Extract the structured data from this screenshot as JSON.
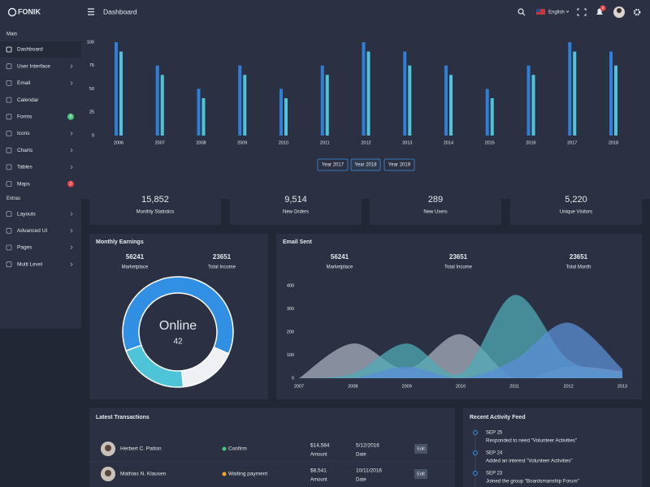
{
  "topbar": {
    "brand": "FONIK",
    "page_title": "Dashboard",
    "language": "English",
    "notification_count": "3"
  },
  "sidebar": {
    "sections": [
      {
        "title": "Main",
        "items": [
          {
            "label": "Dashboard",
            "active": true
          },
          {
            "label": "User Interface",
            "submenu": true
          },
          {
            "label": "Email",
            "submenu": true
          },
          {
            "label": "Calendar"
          },
          {
            "label": "Forms",
            "badge": "8",
            "badge_color": "#4cc37a"
          },
          {
            "label": "Icons",
            "submenu": true
          },
          {
            "label": "Charts",
            "submenu": true
          },
          {
            "label": "Tables",
            "submenu": true
          },
          {
            "label": "Maps",
            "badge": "2",
            "badge_color": "#e8474b"
          }
        ]
      },
      {
        "title": "Extras",
        "items": [
          {
            "label": "Layouts",
            "submenu": true
          },
          {
            "label": "Advanced UI",
            "submenu": true
          },
          {
            "label": "Pages",
            "submenu": true
          },
          {
            "label": "Multi Level",
            "submenu": true
          }
        ]
      }
    ]
  },
  "bar_chart": {
    "type": "bar",
    "categories": [
      "2006",
      "2007",
      "2008",
      "2009",
      "2010",
      "2011",
      "2012",
      "2013",
      "2014",
      "2015",
      "2016",
      "2017",
      "2018"
    ],
    "series": [
      {
        "color": "#2f7fd8",
        "values": [
          100,
          75,
          50,
          75,
          50,
          75,
          100,
          90,
          75,
          50,
          75,
          100,
          90
        ]
      },
      {
        "color": "#4fc3d8",
        "values": [
          90,
          65,
          40,
          65,
          40,
          65,
          90,
          75,
          65,
          40,
          65,
          90,
          75
        ]
      }
    ],
    "ylim": [
      0,
      100
    ],
    "yticks": [
      0,
      25,
      50,
      75,
      100
    ]
  },
  "year_buttons": [
    "Year 2017",
    "Year 2018",
    "Year 2019"
  ],
  "stats": [
    {
      "value": "15,852",
      "label": "Monthly Statistics",
      "color": "#4fc3d8"
    },
    {
      "value": "9,514",
      "label": "New Orders",
      "color": "#8c6fe8"
    },
    {
      "value": "289",
      "label": "New Users",
      "color": "#3d8fe0"
    },
    {
      "value": "5,220",
      "label": "Unique Visitors",
      "color": "#e8474b"
    }
  ],
  "monthly_earnings": {
    "title": "Monthly Earnings",
    "metrics": [
      {
        "value": "56241",
        "label": "Marketplace"
      },
      {
        "value": "23651",
        "label": "Total Income"
      }
    ],
    "donut": {
      "center_label": "Online",
      "center_value": "42",
      "values": [
        62,
        17,
        21
      ],
      "colors": [
        "#3190e3",
        "#eef0f3",
        "#4fc3d8"
      ]
    }
  },
  "email_sent": {
    "title": "Email Sent",
    "metrics": [
      {
        "value": "56241",
        "label": "Marketplace"
      },
      {
        "value": "23651",
        "label": "Total Income"
      },
      {
        "value": "23651",
        "label": "Total Month"
      }
    ],
    "chart": {
      "type": "area",
      "x": [
        2007,
        2008,
        2009,
        2010,
        2011,
        2012,
        2013
      ],
      "xlim": [
        2007,
        2013
      ],
      "xticks": [
        2007,
        2008,
        2009,
        2010,
        2011,
        2012,
        2013
      ],
      "ylim": [
        0,
        400
      ],
      "yticks": [
        0,
        100,
        200,
        300,
        400
      ],
      "series": [
        {
          "color": "#a7aebd",
          "values": [
            0,
            150,
            40,
            190,
            0,
            50,
            30
          ]
        },
        {
          "color": "#4fa9b5",
          "values": [
            0,
            20,
            150,
            20,
            360,
            80,
            20
          ]
        },
        {
          "color": "#5b8fd6",
          "values": [
            0,
            0,
            50,
            0,
            80,
            240,
            40
          ]
        }
      ]
    }
  },
  "transactions": {
    "title": "Latest Transactions",
    "rows": [
      {
        "name": "Herbert C. Patton",
        "status": "Confirm",
        "status_color": "#4cc37a",
        "amount": "$14,584",
        "amount_label": "Amount",
        "date": "5/12/2016",
        "date_label": "Date",
        "action": "Edit"
      },
      {
        "name": "Mathias N. Klausen",
        "status": "Waiting payment",
        "status_color": "#f5a623",
        "amount": "$8,541",
        "amount_label": "Amount",
        "date": "10/11/2016",
        "date_label": "Date",
        "action": "Edit"
      }
    ]
  },
  "activity": {
    "title": "Recent Activity Feed",
    "items": [
      {
        "date": "SEP 25",
        "text": "Responded to need \"Volunteer Activities\""
      },
      {
        "date": "SEP 24",
        "text": "Added an interest \"Volunteer Activities\""
      },
      {
        "date": "SEP 23",
        "text": "Joined the group \"Boardsmanship Forum\""
      }
    ]
  }
}
